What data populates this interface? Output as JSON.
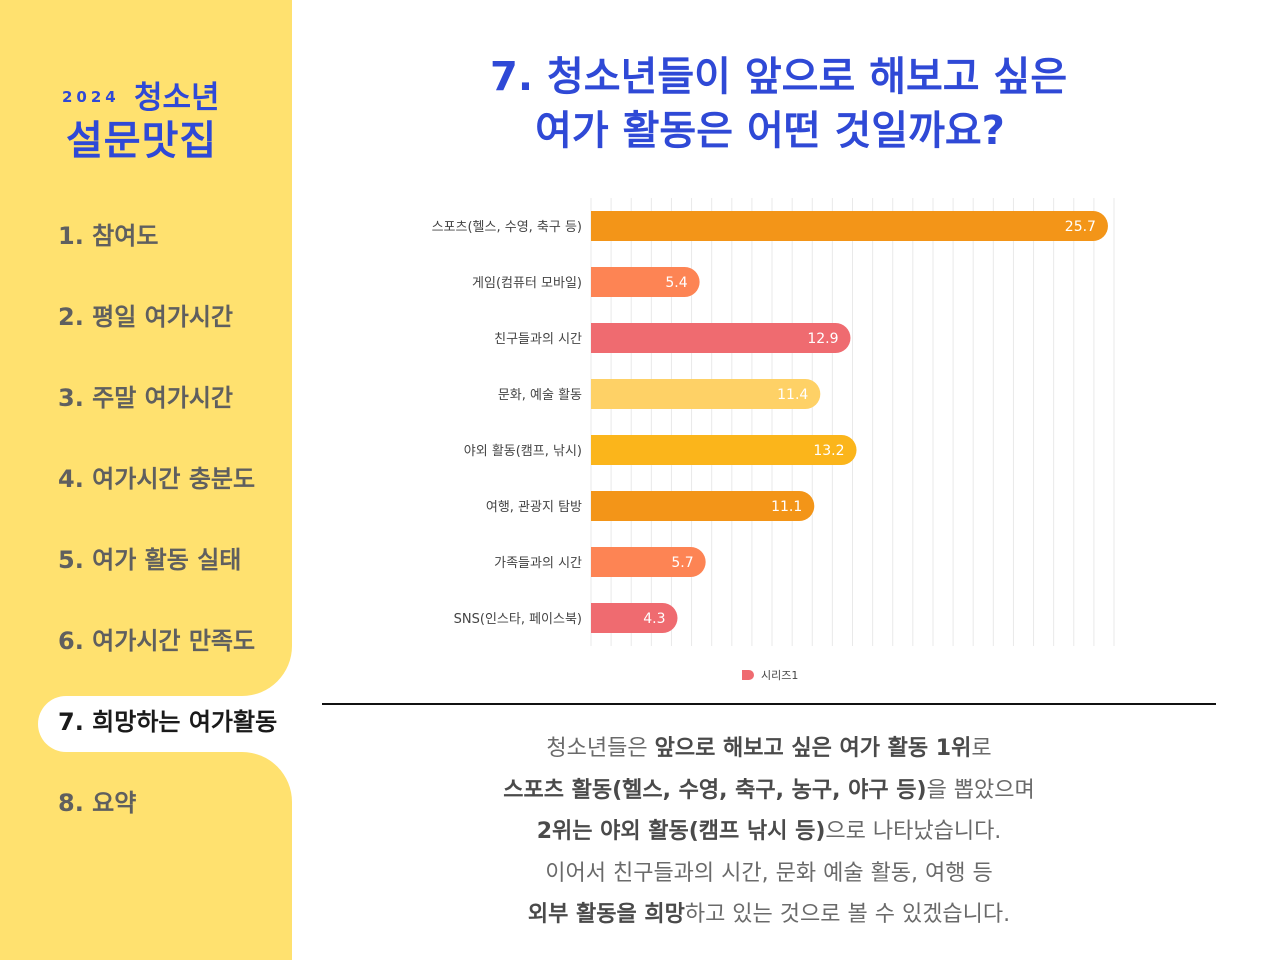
{
  "sidebar": {
    "logo": {
      "year": "2024",
      "top": "청소년",
      "main": "설문맛집"
    },
    "items": [
      {
        "label": "1. 참여도"
      },
      {
        "label": "2. 평일 여가시간"
      },
      {
        "label": "3. 주말 여가시간"
      },
      {
        "label": "4. 여가시간 충분도"
      },
      {
        "label": "5. 여가 활동 실태"
      },
      {
        "label": "6. 여가시간 만족도"
      },
      {
        "label": "7. 희망하는 여가활동"
      },
      {
        "label": "8. 요약"
      }
    ],
    "active_index": 6
  },
  "main": {
    "title_line1": "7. 청소년들이 앞으로 해보고 싶은",
    "title_line2": "여가 활동은 어떤 것일까요?",
    "summary": [
      [
        {
          "t": "청소년들은 ",
          "b": false
        },
        {
          "t": "앞으로 해보고 싶은 여가 활동 1위",
          "b": true
        },
        {
          "t": "로",
          "b": false
        }
      ],
      [
        {
          "t": "스포츠 활동(헬스, 수영, 축구, 농구, 야구 등)",
          "b": true
        },
        {
          "t": "을 뽑았으며",
          "b": false
        }
      ],
      [
        {
          "t": "2위는 야외 활동(캠프 낚시 등)",
          "b": true
        },
        {
          "t": "으로 나타났습니다.",
          "b": false
        }
      ],
      [
        {
          "t": "이어서 친구들과의 시간, 문화 예술 활동, 여행 등",
          "b": false
        }
      ],
      [
        {
          "t": "외부 활동을 희망",
          "b": true
        },
        {
          "t": "하고 있는 것으로  볼 수 있겠습니다.",
          "b": false
        }
      ]
    ]
  },
  "chart_data": {
    "type": "bar",
    "orientation": "horizontal",
    "categories": [
      "스포츠(헬스, 수영, 축구 등)",
      "게임(컴퓨터 모바일)",
      "친구들과의 시간",
      "문화, 예술 활동",
      "야외 활동(캠프, 낚시)",
      "여행, 관광지 탐방",
      "가족들과의 시간",
      "SNS(인스타, 페이스북)"
    ],
    "series": [
      {
        "name": "시리즈1",
        "values": [
          25.7,
          5.4,
          12.9,
          11.4,
          13.2,
          11.1,
          5.7,
          4.3
        ]
      }
    ],
    "bar_colors": [
      "#f39518",
      "#fd8454",
      "#ef6b70",
      "#fed166",
      "#fbb51b",
      "#f39518",
      "#fd8454",
      "#ef6b70"
    ],
    "legend_color": "#ef6b70",
    "legend_position": "bottom",
    "xlim": [
      0,
      26
    ],
    "grid": true,
    "xaxis_visible": false
  }
}
